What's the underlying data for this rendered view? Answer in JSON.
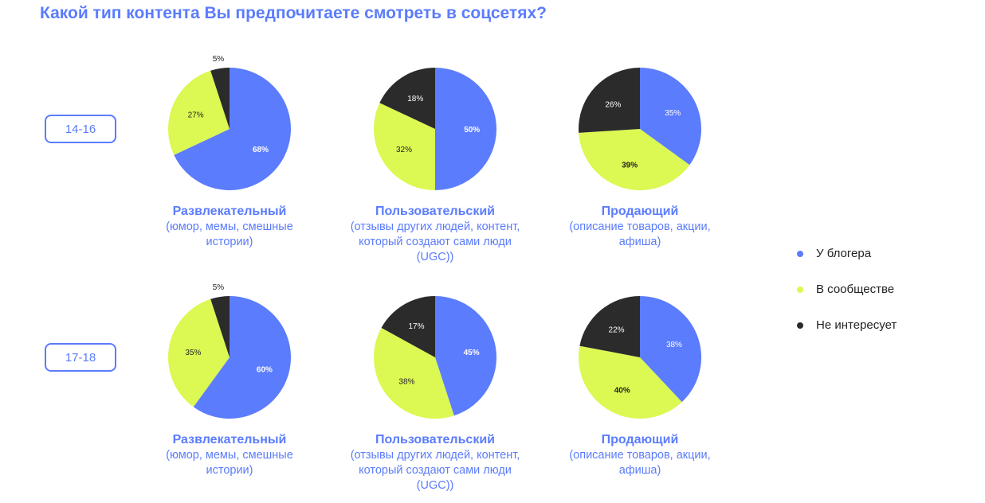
{
  "title": "Какой тип контента Вы предпочитаете смотреть в соцсетях?",
  "colors": {
    "blogger": "#5b7cfd",
    "community": "#dcf852",
    "none": "#2b2b2b"
  },
  "legend": [
    {
      "label": "У блогера",
      "color": "#5b7cfd"
    },
    {
      "label": "В сообществе",
      "color": "#dcf852"
    },
    {
      "label": "Не интересует",
      "color": "#2b2b2b"
    }
  ],
  "rows": [
    {
      "label": "14-16"
    },
    {
      "label": "17-18"
    }
  ],
  "captions": [
    {
      "title": "Развлекательный",
      "sub": "(юмор, мемы, смешные истории)"
    },
    {
      "title": "Пользовательский",
      "sub": "(отзывы других людей, контент, который создают сами люди (UGC))"
    },
    {
      "title": "Продающий",
      "sub": "(описание товаров, акции, афиша)"
    }
  ],
  "chart_data": {
    "type": "pie",
    "series_names": [
      "У блогера",
      "В сообществе",
      "Не интересует"
    ],
    "pies": [
      {
        "age": "14-16",
        "category": "Развлекательный",
        "values": [
          68,
          27,
          5
        ]
      },
      {
        "age": "14-16",
        "category": "Пользовательский",
        "values": [
          50,
          32,
          18
        ]
      },
      {
        "age": "14-16",
        "category": "Продающий",
        "values": [
          35,
          39,
          26
        ]
      },
      {
        "age": "17-18",
        "category": "Развлекательный",
        "values": [
          60,
          35,
          5
        ]
      },
      {
        "age": "17-18",
        "category": "Пользовательский",
        "values": [
          45,
          38,
          17
        ]
      },
      {
        "age": "17-18",
        "category": "Продающий",
        "values": [
          38,
          40,
          22
        ]
      }
    ]
  }
}
